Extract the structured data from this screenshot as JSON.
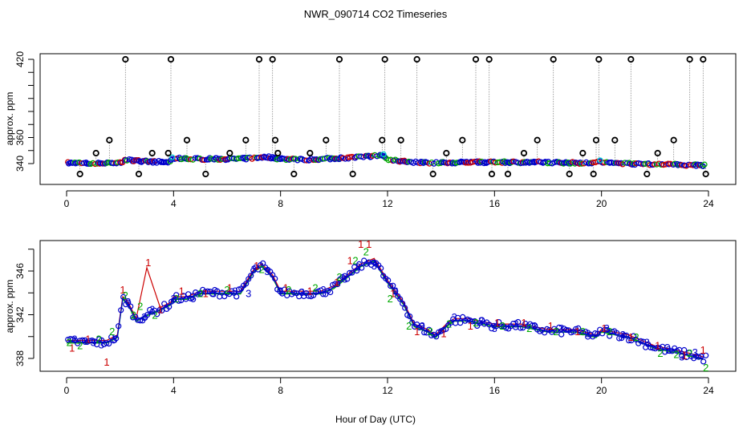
{
  "title": "NWR_090714  CO2 Timeseries",
  "xlabel": "Hour of Day (UTC)",
  "colors": {
    "series1": "#cc0000",
    "series2": "#00aa00",
    "series3": "#0000cc",
    "marker": "#000000",
    "accent": "#00cccc",
    "axis": "#000000"
  },
  "chart_data": [
    {
      "type": "scatter",
      "panel": "top",
      "title": "",
      "xlabel": "",
      "ylabel": "approx. ppm",
      "xlim": [
        0,
        24
      ],
      "ylim": [
        330,
        425
      ],
      "x_ticks": [
        0,
        4,
        8,
        12,
        16,
        20,
        24
      ],
      "y_ticks": [
        340,
        360,
        420
      ],
      "y_minor_ticks": [
        350,
        370,
        380,
        390,
        400,
        410
      ],
      "grid": false,
      "baseline_profile": {
        "x": [
          0,
          1,
          2,
          2.2,
          3,
          3.8,
          4,
          5,
          6,
          7,
          7.5,
          8,
          9,
          10,
          11,
          11.8,
          12,
          12.5,
          13,
          14,
          15,
          16,
          17,
          18,
          19,
          20,
          21,
          22,
          23,
          24
        ],
        "y": [
          340.5,
          340,
          340.5,
          343,
          341.5,
          341,
          344,
          343.5,
          343.5,
          344,
          345,
          343.5,
          343,
          344,
          345,
          346.5,
          343,
          342,
          341,
          340.5,
          341,
          341,
          341,
          341,
          340.5,
          341,
          340,
          339.5,
          339,
          338.5
        ]
      },
      "spike_markers": {
        "name": "spikes",
        "x": [
          0.5,
          1.1,
          1.6,
          2.2,
          2.7,
          3.2,
          3.8,
          3.9,
          4.5,
          5.2,
          6.1,
          6.7,
          7.2,
          7.7,
          7.8,
          7.9,
          8.5,
          9.1,
          9.7,
          10.2,
          10.7,
          11.8,
          11.9,
          12.5,
          13.1,
          13.7,
          14.2,
          14.8,
          15.3,
          15.8,
          15.9,
          16.5,
          17.1,
          17.6,
          18.2,
          18.8,
          19.3,
          19.7,
          19.8,
          19.9,
          20.5,
          21.1,
          21.7,
          22.1,
          22.7,
          23.3,
          23.8,
          23.9
        ],
        "y": [
          332,
          348,
          358,
          420,
          332,
          348,
          348,
          420,
          358,
          332,
          348,
          358,
          420,
          420,
          358,
          348,
          332,
          348,
          358,
          420,
          332,
          358,
          420,
          358,
          420,
          332,
          348,
          358,
          420,
          420,
          332,
          332,
          348,
          358,
          420,
          332,
          348,
          332,
          358,
          420,
          358,
          420,
          332,
          348,
          358,
          420,
          420,
          332
        ]
      }
    },
    {
      "type": "scatter",
      "panel": "bottom",
      "title": "",
      "xlabel": "Hour of Day (UTC)",
      "ylabel": "approx. ppm",
      "xlim": [
        0,
        24
      ],
      "ylim": [
        336.5,
        348.5
      ],
      "x_ticks": [
        0,
        4,
        8,
        12,
        16,
        20,
        24
      ],
      "y_ticks": [
        338,
        342,
        346
      ],
      "y_minor_ticks": [
        340,
        344,
        348
      ],
      "grid": false,
      "profile": {
        "x": [
          0,
          0.5,
          1,
          1.5,
          1.9,
          2.1,
          2.3,
          2.6,
          3.0,
          3.5,
          3.9,
          4.0,
          4.5,
          5,
          5.5,
          6,
          6.5,
          7.0,
          7.3,
          7.7,
          8.0,
          8.5,
          9,
          9.5,
          10,
          10.5,
          11,
          11.5,
          12.0,
          12.3,
          12.6,
          13,
          13.5,
          13.8,
          14.2,
          14.5,
          15,
          16,
          17,
          18,
          19,
          19.8,
          20,
          21,
          22,
          23,
          23.8
        ],
        "y": [
          339.5,
          339.5,
          339.5,
          339.5,
          340,
          343.5,
          343,
          341.5,
          342,
          342.5,
          343,
          343.5,
          343.5,
          344,
          344,
          344,
          344,
          346,
          346.5,
          345.5,
          344,
          344,
          344,
          344,
          344.5,
          345.5,
          346.5,
          347,
          345,
          344,
          343,
          341,
          340.5,
          340,
          341,
          341.5,
          341.5,
          341,
          341,
          340.5,
          340.5,
          340,
          340.5,
          340,
          339,
          338.5,
          338
        ]
      },
      "labels": [
        {
          "name": "series 1",
          "glyph": "1",
          "x": [
            0.2,
            0.8,
            1.5,
            2.1,
            3.05,
            3.5,
            4.3,
            5.2,
            6.1,
            7.1,
            8.2,
            9.1,
            10.1,
            10.6,
            11.0,
            11.3,
            12.2,
            13.1,
            14.1,
            15.1,
            16.1,
            17.1,
            18.1,
            19.1,
            20.1,
            21.1,
            22.1,
            23.1,
            23.8
          ],
          "y": [
            339,
            339.8,
            337.7,
            344.3,
            346.8,
            342.5,
            344.2,
            344,
            344.5,
            346.5,
            344.5,
            344.2,
            345,
            347,
            348.5,
            348.5,
            344,
            340.5,
            340.3,
            341,
            341.3,
            341.3,
            341,
            340.5,
            340.8,
            340,
            339.2,
            338.3,
            338.8
          ]
        },
        {
          "name": "series 2",
          "glyph": "2",
          "x": [
            0.1,
            0.5,
            1.2,
            1.7,
            2.2,
            2.5,
            2.75,
            3.3,
            4.1,
            5.0,
            6.0,
            7.3,
            8.3,
            9.3,
            10.2,
            10.8,
            11.2,
            12.1,
            12.8,
            13.6,
            14.3,
            15.3,
            16.3,
            17.3,
            18.3,
            19.3,
            20.3,
            21.3,
            22.2,
            22.8,
            23.3,
            23.9
          ],
          "y": [
            339.5,
            339.2,
            339.8,
            340.5,
            343.8,
            342,
            342.8,
            342,
            343.5,
            344,
            344.3,
            346.2,
            344.3,
            344.5,
            345.5,
            347,
            347.8,
            343.5,
            341,
            340.5,
            341.2,
            341.3,
            341,
            340.8,
            340.5,
            340.5,
            340.5,
            340,
            338.5,
            338.4,
            338.5,
            337.2
          ]
        },
        {
          "name": "series 3",
          "glyph": "3",
          "x": [
            0.3,
            0.7,
            1.0,
            1.3,
            1.8,
            2.3,
            2.9,
            3.2,
            4.0,
            4.7,
            5.5,
            6.3,
            6.8,
            7.0,
            7.5,
            8.0,
            8.8,
            9.6,
            10.4,
            10.9,
            11.5,
            12.3,
            13.3,
            14.5,
            15.5,
            16.0,
            16.8,
            17.5,
            18.5,
            19.5,
            20.2,
            20.8,
            21.7,
            22.5,
            23.0,
            23.5
          ],
          "y": [
            339.8,
            339.6,
            339.5,
            339.3,
            339.8,
            343.2,
            341.8,
            342.5,
            343.5,
            343.7,
            344,
            344.2,
            344,
            346.2,
            346,
            344.2,
            344.1,
            344.3,
            345.3,
            346.4,
            346.5,
            344.2,
            341,
            341.8,
            341.5,
            340.8,
            341.2,
            341,
            340.8,
            340.3,
            340.8,
            340.2,
            339.5,
            338.8,
            338.2,
            338.6
          ]
        }
      ]
    }
  ]
}
